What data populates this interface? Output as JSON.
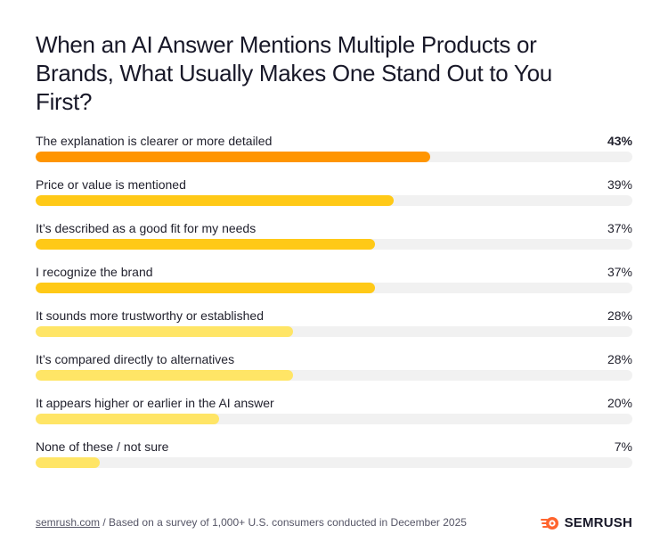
{
  "chart": {
    "title": "When an AI Answer Mentions Multiple Products or Brands, What Usually Makes One Stand Out to You First?"
  },
  "chart_data": {
    "type": "bar",
    "orientation": "horizontal",
    "title": "When an AI Answer Mentions Multiple Products or Brands, What Usually Makes One Stand Out to You First?",
    "unit": "%",
    "xlim": [
      0,
      65
    ],
    "grid": false,
    "categories": [
      "The explanation is clearer or more detailed",
      "Price or value is mentioned",
      "It’s described as a good fit for my needs",
      "I recognize the brand",
      "It sounds more trustworthy or established",
      "It’s compared directly to alternatives",
      "It appears higher or earlier in the AI answer",
      "None of these / not sure"
    ],
    "values": [
      43,
      39,
      37,
      37,
      28,
      28,
      20,
      7
    ],
    "value_labels": [
      "43%",
      "39%",
      "37%",
      "37%",
      "28%",
      "28%",
      "20%",
      "7%"
    ],
    "colors": [
      "#ff9500",
      "#ffc917",
      "#ffc917",
      "#ffc917",
      "#ffe566",
      "#ffe566",
      "#ffe566",
      "#ffe566"
    ],
    "track_color": "#f1f1f1"
  },
  "footer": {
    "link": "semrush.com",
    "note": " / Based on a survey of 1,000+ U.S. consumers conducted in December 2025"
  },
  "brand": {
    "name": "SEMRUSH",
    "icon": "semrush-logo-icon",
    "color": "#ff642d"
  }
}
